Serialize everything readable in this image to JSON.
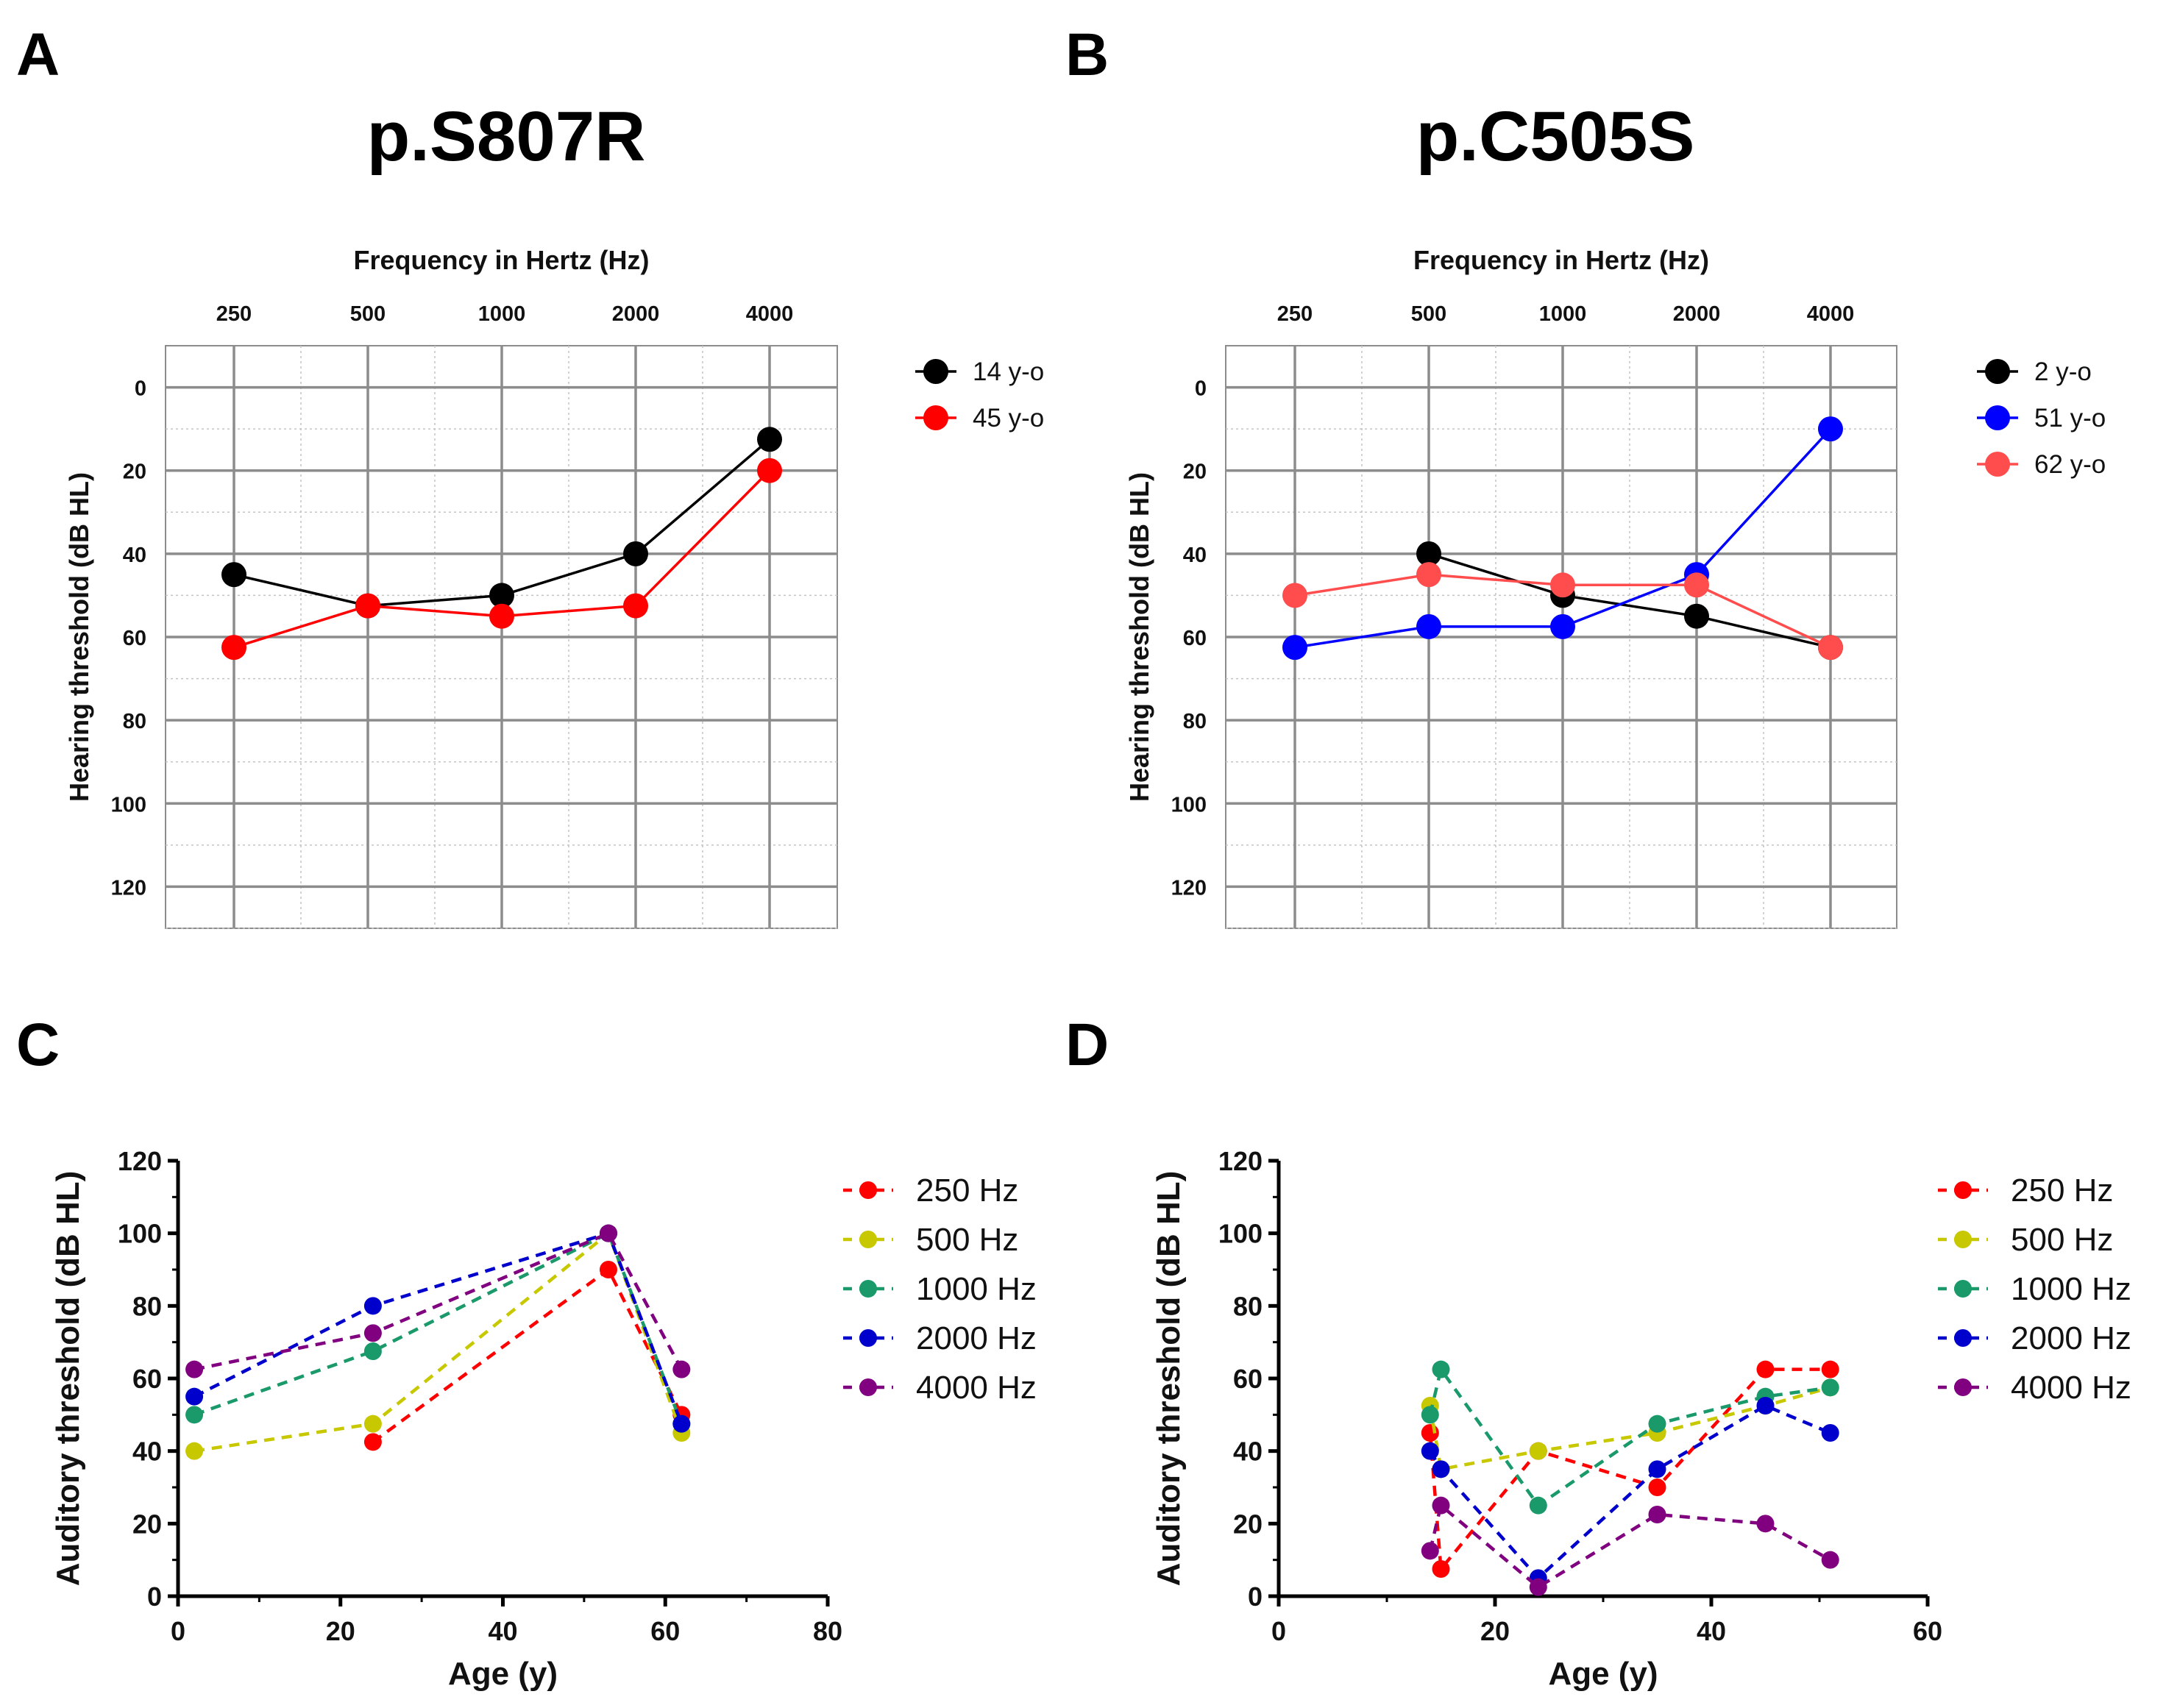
{
  "panels": {
    "A": {
      "label": "A",
      "title": "p.S807R"
    },
    "B": {
      "label": "B",
      "title": "p.C505S"
    },
    "C": {
      "label": "C"
    },
    "D": {
      "label": "D"
    }
  },
  "colors": {
    "black": "#000000",
    "red": "#ff0000",
    "blue": "#0000ff",
    "salmon": "#ff4d4d",
    "dark_blue": "#0000cc",
    "olive": "#c8c800",
    "teal": "#1a9a6a",
    "purple": "#800080"
  },
  "chart_data": [
    {
      "panel": "A",
      "type": "line",
      "title": "p.S807R",
      "xlabel": "Frequency in Hertz (Hz)",
      "ylabel": "Hearing threshold (dB HL)",
      "categories": [
        "250",
        "500",
        "1000",
        "2000",
        "4000"
      ],
      "yticks": [
        "0",
        "20",
        "40",
        "60",
        "80",
        "100",
        "120"
      ],
      "ylim": [
        -10,
        130
      ],
      "y_inverted": true,
      "grid": true,
      "legend": "top-right, outside plot",
      "series": [
        {
          "name": "14 y-o",
          "color": "#000000",
          "values": [
            45,
            52.5,
            50,
            40,
            12.5
          ]
        },
        {
          "name": "45 y-o",
          "color": "#ff0000",
          "values": [
            62.5,
            52.5,
            55,
            52.5,
            20
          ]
        }
      ]
    },
    {
      "panel": "B",
      "type": "line",
      "title": "p.C505S",
      "xlabel": "Frequency in Hertz (Hz)",
      "ylabel": "Hearing threshold (dB HL)",
      "categories": [
        "250",
        "500",
        "1000",
        "2000",
        "4000"
      ],
      "yticks": [
        "0",
        "20",
        "40",
        "60",
        "80",
        "100",
        "120"
      ],
      "ylim": [
        -10,
        130
      ],
      "y_inverted": true,
      "grid": true,
      "legend": "top-right, outside plot",
      "series": [
        {
          "name": "2 y-o",
          "color": "#000000",
          "values": [
            null,
            40,
            50,
            55,
            62.5
          ]
        },
        {
          "name": "51 y-o",
          "color": "#0000ff",
          "values": [
            62.5,
            57.5,
            57.5,
            45,
            10
          ]
        },
        {
          "name": "62 y-o",
          "color": "#ff4d4d",
          "values": [
            50,
            45,
            47.5,
            47.5,
            62.5
          ]
        }
      ]
    },
    {
      "panel": "C",
      "type": "scatter",
      "xlabel": "Age (y)",
      "ylabel": "Auditory threshold  (dB HL)",
      "xlim": [
        0,
        80
      ],
      "ylim": [
        0,
        120
      ],
      "xticks": [
        "0",
        "20",
        "40",
        "60",
        "80"
      ],
      "yticks": [
        "0",
        "20",
        "40",
        "60",
        "80",
        "100",
        "120"
      ],
      "grid": false,
      "legend": "top-right, outside plot",
      "x": [
        2,
        24,
        53,
        62
      ],
      "series": [
        {
          "name": "250 Hz",
          "color": "#ff0000",
          "values": [
            null,
            42.5,
            90,
            50
          ]
        },
        {
          "name": "500 Hz",
          "color": "#c8c800",
          "values": [
            40,
            47.5,
            100,
            45
          ]
        },
        {
          "name": "1000 Hz",
          "color": "#1a9a6a",
          "values": [
            50,
            67.5,
            100,
            47.5
          ]
        },
        {
          "name": "2000 Hz",
          "color": "#0000cc",
          "values": [
            55,
            80,
            100,
            47.5
          ]
        },
        {
          "name": "4000 Hz",
          "color": "#800080",
          "values": [
            62.5,
            72.5,
            100,
            62.5
          ]
        }
      ]
    },
    {
      "panel": "D",
      "type": "scatter",
      "xlabel": "Age (y)",
      "ylabel": "Auditory threshold  (dB HL)",
      "xlim": [
        0,
        60
      ],
      "ylim": [
        0,
        120
      ],
      "xticks": [
        "0",
        "20",
        "40",
        "60"
      ],
      "yticks": [
        "0",
        "20",
        "40",
        "60",
        "80",
        "100",
        "120"
      ],
      "grid": false,
      "legend": "top-right, outside plot",
      "x": [
        14,
        15,
        24,
        35,
        45,
        51
      ],
      "series": [
        {
          "name": "250 Hz",
          "color": "#ff0000",
          "values": [
            45,
            7.5,
            40,
            30,
            62.5,
            62.5
          ]
        },
        {
          "name": "500 Hz",
          "color": "#c8c800",
          "values": [
            52.5,
            35,
            40,
            45,
            52.5,
            57.5
          ]
        },
        {
          "name": "1000 Hz",
          "color": "#1a9a6a",
          "values": [
            50,
            62.5,
            25,
            47.5,
            55,
            57.5
          ]
        },
        {
          "name": "2000 Hz",
          "color": "#0000cc",
          "values": [
            40,
            35,
            5,
            35,
            52.5,
            45
          ]
        },
        {
          "name": "4000 Hz",
          "color": "#800080",
          "values": [
            12.5,
            25,
            2.5,
            22.5,
            20,
            10
          ]
        }
      ]
    }
  ]
}
